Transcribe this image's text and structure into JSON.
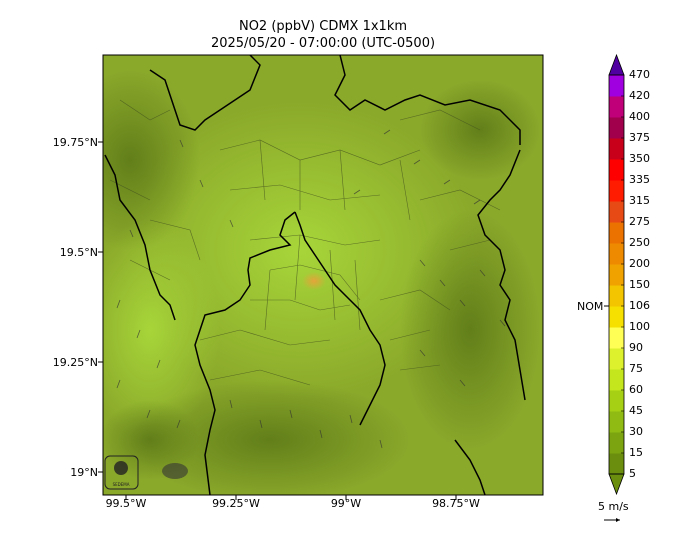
{
  "title": {
    "line1": "NO2 (ppbV) CDMX 1x1km",
    "line2": "2025/05/20 - 07:00:00 (UTC-0500)"
  },
  "map": {
    "lat_ticks": [
      "19.75°N",
      "19.5°N",
      "19.25°N",
      "19°N"
    ],
    "lon_ticks": [
      "99.5°W",
      "99.25°W",
      "99°W",
      "98.75°W"
    ],
    "logos": [
      "SEDEMA",
      "logo-2"
    ]
  },
  "colorbar": {
    "levels": [
      "5",
      "15",
      "30",
      "45",
      "60",
      "75",
      "90",
      "100",
      "106",
      "150",
      "200",
      "250",
      "275",
      "315",
      "335",
      "350",
      "375",
      "400",
      "420",
      "470"
    ],
    "colors": [
      "#6b8e0e",
      "#7ba410",
      "#8fbb12",
      "#a6d014",
      "#c3e61c",
      "#ddf22c",
      "#ffff55",
      "#f5e000",
      "#f3c400",
      "#f0a200",
      "#ee8a00",
      "#ec7200",
      "#e84a16",
      "#ff1c00",
      "#ff0000",
      "#c8001a",
      "#a0004c",
      "#c00078",
      "#a000e0",
      "#5000a0"
    ],
    "nom_label": "NOM",
    "wind_label": "5 m/s"
  }
}
